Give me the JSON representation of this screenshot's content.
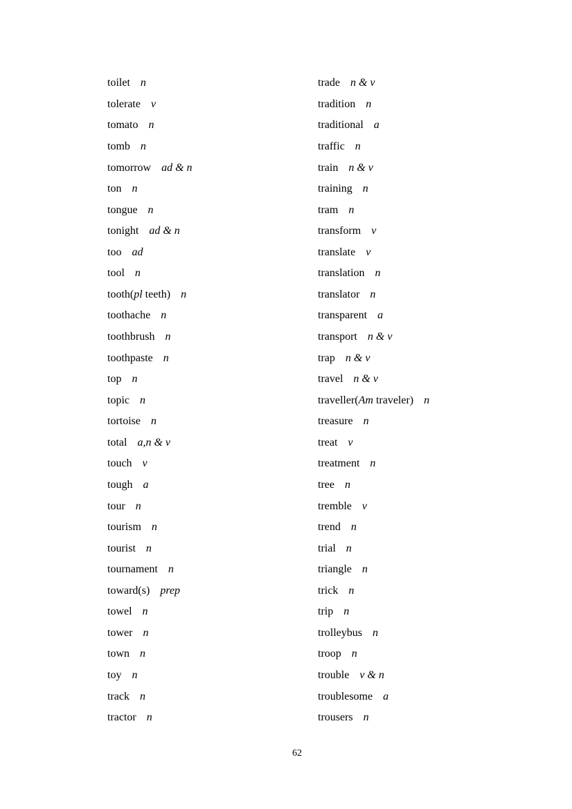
{
  "page": {
    "number": "62"
  },
  "word_list": {
    "left_column": [
      {
        "word": "toilet",
        "pos": "n"
      },
      {
        "word": "tolerate",
        "pos": "v"
      },
      {
        "word": "tomato",
        "pos": "n"
      },
      {
        "word": "tomb",
        "pos": "n"
      },
      {
        "word": "tomorrow",
        "pos": "ad & n"
      },
      {
        "word": "ton",
        "pos": "n"
      },
      {
        "word": "tongue",
        "pos": "n"
      },
      {
        "word": "tonight",
        "pos": "ad & n"
      },
      {
        "word": "too",
        "pos": "ad"
      },
      {
        "word": "tool",
        "pos": "n"
      },
      {
        "word": [
          "tooth(",
          {
            "i": "pl"
          },
          " teeth)"
        ],
        "pos": "n"
      },
      {
        "word": "toothache",
        "pos": "n"
      },
      {
        "word": "toothbrush",
        "pos": "n"
      },
      {
        "word": "toothpaste",
        "pos": "n"
      },
      {
        "word": "top",
        "pos": "n"
      },
      {
        "word": "topic",
        "pos": "n"
      },
      {
        "word": "tortoise",
        "pos": "n"
      },
      {
        "word": "total",
        "pos": "a,n & v"
      },
      {
        "word": "touch",
        "pos": "v"
      },
      {
        "word": "tough",
        "pos": "a"
      },
      {
        "word": "tour",
        "pos": "n"
      },
      {
        "word": "tourism",
        "pos": "n"
      },
      {
        "word": "tourist",
        "pos": "n"
      },
      {
        "word": "tournament",
        "pos": "n"
      },
      {
        "word": "toward(s)",
        "pos": "prep"
      },
      {
        "word": "towel",
        "pos": "n"
      },
      {
        "word": "tower",
        "pos": "n"
      },
      {
        "word": "town",
        "pos": "n"
      },
      {
        "word": "toy",
        "pos": "n"
      },
      {
        "word": "track",
        "pos": "n"
      },
      {
        "word": "tractor",
        "pos": "n"
      }
    ],
    "right_column": [
      {
        "word": "trade",
        "pos": "n & v"
      },
      {
        "word": "tradition",
        "pos": "n"
      },
      {
        "word": "traditional",
        "pos": "a"
      },
      {
        "word": "traffic",
        "pos": "n"
      },
      {
        "word": "train",
        "pos": "n & v"
      },
      {
        "word": "training",
        "pos": "n"
      },
      {
        "word": "tram",
        "pos": "n"
      },
      {
        "word": "transform",
        "pos": "v"
      },
      {
        "word": "translate",
        "pos": "v"
      },
      {
        "word": "translation",
        "pos": "n"
      },
      {
        "word": "translator",
        "pos": "n"
      },
      {
        "word": "transparent",
        "pos": "a"
      },
      {
        "word": "transport",
        "pos": "n & v"
      },
      {
        "word": "trap",
        "pos": "n & v"
      },
      {
        "word": "travel",
        "pos": "n & v"
      },
      {
        "word": [
          "traveller(",
          {
            "i": "Am"
          },
          " traveler)"
        ],
        "pos": "n"
      },
      {
        "word": "treasure",
        "pos": "n"
      },
      {
        "word": "treat",
        "pos": "v"
      },
      {
        "word": "treatment",
        "pos": "n"
      },
      {
        "word": "tree",
        "pos": "n"
      },
      {
        "word": "tremble",
        "pos": "v"
      },
      {
        "word": "trend",
        "pos": "n"
      },
      {
        "word": "trial",
        "pos": "n"
      },
      {
        "word": "triangle",
        "pos": "n"
      },
      {
        "word": "trick",
        "pos": "n"
      },
      {
        "word": "trip",
        "pos": "n"
      },
      {
        "word": "trolleybus",
        "pos": "n"
      },
      {
        "word": "troop",
        "pos": "n"
      },
      {
        "word": "trouble",
        "pos": "v & n"
      },
      {
        "word": "troublesome",
        "pos": "a"
      },
      {
        "word": "trousers",
        "pos": "n"
      }
    ]
  }
}
